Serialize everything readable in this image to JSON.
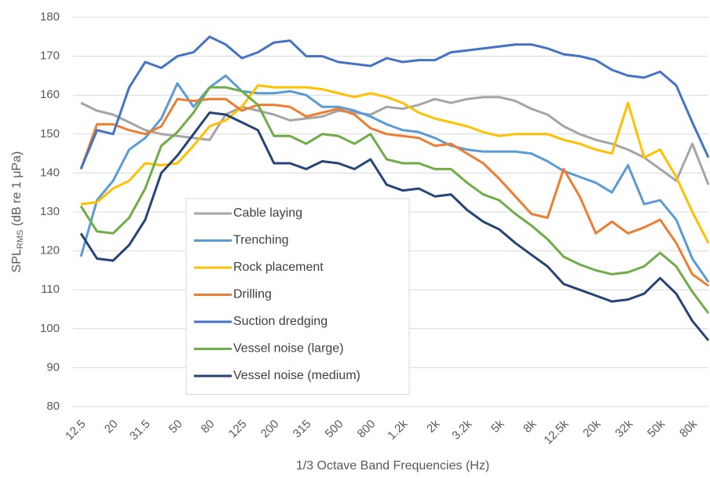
{
  "chart_data": {
    "type": "line",
    "x_label": "1/3 Octave Band Frequencies (Hz)",
    "y_label": {
      "main": "SPL",
      "sub": "RMS",
      "rest": " (dB re 1 μPa)"
    },
    "categories": [
      "12.5",
      null,
      "20",
      null,
      "31.5",
      null,
      "50",
      null,
      "80",
      null,
      "125",
      null,
      "200",
      null,
      "315",
      null,
      "500",
      null,
      "800",
      null,
      "1.2k",
      null,
      "2k",
      null,
      "3.2k",
      null,
      "5k",
      null,
      "8k",
      null,
      "12.5k",
      null,
      "20k",
      null,
      "32k",
      null,
      "50k",
      null,
      "80k",
      null
    ],
    "ylim": [
      80,
      180
    ],
    "yticks": [
      80,
      90,
      100,
      110,
      120,
      130,
      140,
      150,
      160,
      170,
      180
    ],
    "grid": true,
    "legend": "center",
    "series": [
      {
        "name": "Cable laying",
        "color": "#a5a5a5",
        "values": [
          158,
          156,
          155,
          153,
          151,
          150,
          149.5,
          149,
          148.5,
          155,
          157,
          156,
          155,
          153.5,
          154,
          154.5,
          156,
          155.5,
          155,
          157,
          156.5,
          157.5,
          159,
          158,
          159,
          159.5,
          159.5,
          158.5,
          156.5,
          155,
          152,
          150,
          148.5,
          147.5,
          146,
          144,
          141,
          138,
          147.5,
          137
        ]
      },
      {
        "name": "Trenching",
        "color": "#5b9bd5",
        "values": [
          118.5,
          133,
          138,
          146,
          149,
          154,
          163,
          157,
          162,
          165,
          161,
          160.5,
          160.5,
          161,
          160,
          157,
          157,
          156,
          154.5,
          152.5,
          151,
          150.5,
          149,
          147,
          146,
          145.5,
          145.5,
          145.5,
          145,
          143,
          140.5,
          139,
          137.5,
          135,
          142,
          132,
          133,
          128,
          118,
          112
        ]
      },
      {
        "name": "Rock placement",
        "color": "#ffc000",
        "values": [
          132,
          132.5,
          136,
          138,
          142.5,
          142,
          142.5,
          147,
          152,
          153.5,
          157,
          162.5,
          162,
          162,
          162,
          161.5,
          160.5,
          159.5,
          160.5,
          159.5,
          158,
          155.5,
          154,
          153,
          152,
          150.5,
          149.5,
          150,
          150,
          150,
          148.5,
          147.5,
          146,
          145,
          158,
          144,
          146,
          139,
          130,
          122
        ]
      },
      {
        "name": "Drilling",
        "color": "#ed7d31",
        "values": [
          141,
          152.5,
          152.5,
          151,
          150,
          152,
          159,
          158.5,
          159,
          159,
          156,
          157.5,
          157.5,
          157,
          154.5,
          155.5,
          156.5,
          155,
          151.5,
          150,
          149.5,
          149,
          147,
          147.5,
          145,
          142.5,
          138.5,
          134,
          129.5,
          128.5,
          141,
          134,
          124.5,
          127.5,
          124.5,
          126,
          128,
          122,
          114,
          111
        ]
      },
      {
        "name": "Suction dredging",
        "color": "#4472c4",
        "values": [
          141,
          151,
          150,
          162,
          168.5,
          167,
          170,
          171,
          175,
          173,
          169.5,
          171,
          173.5,
          174,
          170,
          170,
          168.5,
          168,
          167.5,
          169.5,
          168.5,
          169,
          169,
          171,
          171.5,
          172,
          172.5,
          173,
          173,
          172,
          170.5,
          170,
          169,
          166.5,
          165,
          164.5,
          166,
          162.5,
          153,
          144
        ]
      },
      {
        "name": "Vessel noise (large)",
        "color": "#70ad47",
        "values": [
          131.5,
          125,
          124.5,
          128.5,
          136,
          147,
          150.5,
          155.5,
          162,
          162,
          161,
          157.5,
          149.5,
          149.5,
          147.5,
          150,
          149.5,
          147.5,
          150,
          143.5,
          142.5,
          142.5,
          141,
          141,
          137.5,
          134.5,
          133,
          129.5,
          126.5,
          123,
          118.5,
          116.5,
          115,
          114,
          114.5,
          116,
          119.5,
          116,
          109.5,
          104
        ]
      },
      {
        "name": "Vessel noise (medium)",
        "color": "#264478",
        "values": [
          124.5,
          118,
          117.5,
          121.5,
          128,
          140,
          144.5,
          150,
          155.5,
          155,
          153,
          151,
          142.5,
          142.5,
          141,
          143,
          142.5,
          141,
          143.5,
          137,
          135.5,
          136,
          134,
          134.5,
          130.5,
          127.5,
          125.5,
          122,
          119,
          116,
          111.5,
          110,
          108.5,
          107,
          107.5,
          109,
          113,
          109,
          102,
          97
        ]
      }
    ]
  }
}
